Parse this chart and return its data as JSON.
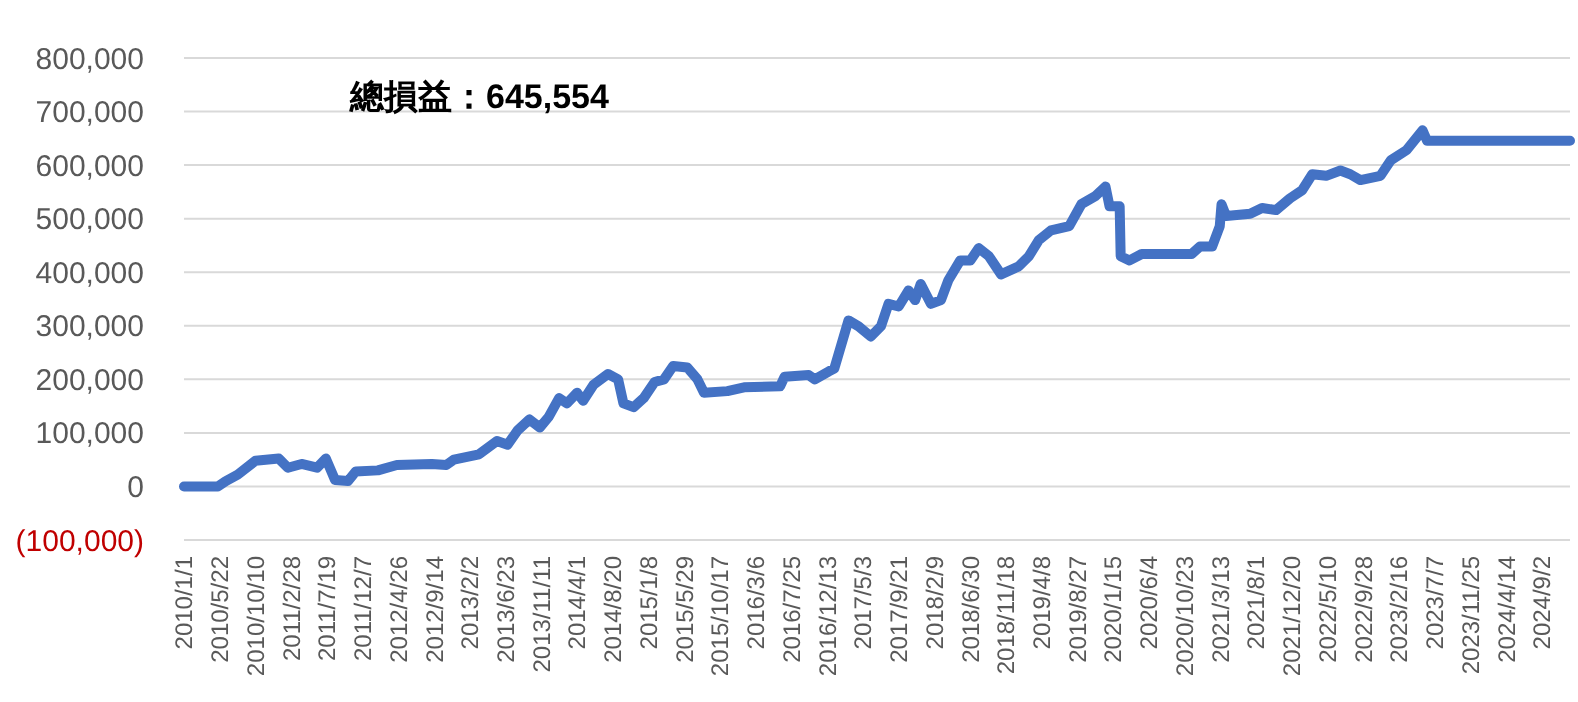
{
  "chart_data": {
    "type": "line",
    "title": "總損益：645,554",
    "x": [
      "2010-01-01",
      "2010-05-15",
      "2010-06-15",
      "2010-08-01",
      "2010-10-10",
      "2011-01-10",
      "2011-02-15",
      "2011-04-10",
      "2011-06-10",
      "2011-07-15",
      "2011-08-20",
      "2011-10-10",
      "2011-11-10",
      "2012-02-05",
      "2012-04-20",
      "2012-09-05",
      "2012-11-01",
      "2012-12-01",
      "2013-03-10",
      "2013-05-20",
      "2013-07-01",
      "2013-08-10",
      "2013-09-25",
      "2013-11-05",
      "2013-12-10",
      "2014-01-20",
      "2014-02-20",
      "2014-04-01",
      "2014-04-25",
      "2014-06-05",
      "2014-08-01",
      "2014-09-10",
      "2014-10-01",
      "2014-11-10",
      "2014-12-20",
      "2015-02-01",
      "2015-03-10",
      "2015-04-15",
      "2015-06-10",
      "2015-07-20",
      "2015-08-15",
      "2015-11-15",
      "2016-01-20",
      "2016-06-10",
      "2016-06-28",
      "2016-10-01",
      "2016-10-25",
      "2016-12-20",
      "2017-01-10",
      "2017-03-07",
      "2017-04-16",
      "2017-06-03",
      "2017-07-13",
      "2017-08-12",
      "2017-09-21",
      "2017-10-30",
      "2017-11-25",
      "2017-12-17",
      "2018-01-26",
      "2018-03-07",
      "2018-04-05",
      "2018-05-22",
      "2018-07-01",
      "2018-08-03",
      "2018-09-12",
      "2018-10-30",
      "2019-01-08",
      "2019-02-17",
      "2019-03-28",
      "2019-05-15",
      "2019-07-26",
      "2019-09-12",
      "2019-11-06",
      "2019-12-16",
      "2020-01-01",
      "2020-02-10",
      "2020-02-14",
      "2020-03-20",
      "2020-05-07",
      "2020-11-20",
      "2020-12-23",
      "2021-02-09",
      "2021-03-11",
      "2021-03-18",
      "2021-04-05",
      "2021-07-09",
      "2021-08-25",
      "2021-10-19",
      "2021-12-13",
      "2022-01-30",
      "2022-03-11",
      "2022-05-05",
      "2022-06-30",
      "2022-08-08",
      "2022-09-17",
      "2022-12-05",
      "2023-01-15",
      "2023-03-18",
      "2023-05-20",
      "2023-06-07",
      "2024-12-22"
    ],
    "series": [
      {
        "color": "#4472c4",
        "values": [
          0,
          0,
          10000,
          22000,
          48000,
          52000,
          35000,
          42000,
          35000,
          52000,
          12000,
          10000,
          28000,
          30000,
          40000,
          42000,
          40000,
          50000,
          60000,
          85000,
          78000,
          105000,
          125000,
          110000,
          130000,
          165000,
          155000,
          175000,
          160000,
          190000,
          210000,
          200000,
          155000,
          148000,
          165000,
          195000,
          200000,
          225000,
          222000,
          200000,
          175000,
          178000,
          185000,
          187000,
          205000,
          208000,
          200000,
          215000,
          220000,
          310000,
          299000,
          280000,
          299000,
          341000,
          336000,
          366000,
          348000,
          378000,
          341000,
          348000,
          385000,
          422000,
          422000,
          445000,
          430000,
          396000,
          411000,
          430000,
          460000,
          478000,
          486000,
          527000,
          542000,
          560000,
          523000,
          523000,
          430000,
          422000,
          434000,
          434000,
          448000,
          448000,
          486000,
          527000,
          505000,
          509000,
          520000,
          516000,
          538000,
          553000,
          583000,
          580000,
          590000,
          583000,
          572000,
          580000,
          609000,
          628000,
          665000,
          645554,
          645554
        ]
      }
    ],
    "xlim": [
      "2010-01-01",
      "2024-12-22"
    ],
    "xticks": [
      {
        "value": "2010-01-01",
        "label": "2010/1/1"
      },
      {
        "value": "2010-05-22",
        "label": "2010/5/22"
      },
      {
        "value": "2010-10-10",
        "label": "2010/10/10"
      },
      {
        "value": "2011-02-28",
        "label": "2011/2/28"
      },
      {
        "value": "2011-07-19",
        "label": "2011/7/19"
      },
      {
        "value": "2011-12-07",
        "label": "2011/12/7"
      },
      {
        "value": "2012-04-26",
        "label": "2012/4/26"
      },
      {
        "value": "2012-09-14",
        "label": "2012/9/14"
      },
      {
        "value": "2013-02-02",
        "label": "2013/2/2"
      },
      {
        "value": "2013-06-23",
        "label": "2013/6/23"
      },
      {
        "value": "2013-11-11",
        "label": "2013/11/11"
      },
      {
        "value": "2014-04-01",
        "label": "2014/4/1"
      },
      {
        "value": "2014-08-20",
        "label": "2014/8/20"
      },
      {
        "value": "2015-01-08",
        "label": "2015/1/8"
      },
      {
        "value": "2015-05-29",
        "label": "2015/5/29"
      },
      {
        "value": "2015-10-17",
        "label": "2015/10/17"
      },
      {
        "value": "2016-03-06",
        "label": "2016/3/6"
      },
      {
        "value": "2016-07-25",
        "label": "2016/7/25"
      },
      {
        "value": "2016-12-13",
        "label": "2016/12/13"
      },
      {
        "value": "2017-05-03",
        "label": "2017/5/3"
      },
      {
        "value": "2017-09-21",
        "label": "2017/9/21"
      },
      {
        "value": "2018-02-09",
        "label": "2018/2/9"
      },
      {
        "value": "2018-06-30",
        "label": "2018/6/30"
      },
      {
        "value": "2018-11-18",
        "label": "2018/11/18"
      },
      {
        "value": "2019-04-08",
        "label": "2019/4/8"
      },
      {
        "value": "2019-08-27",
        "label": "2019/8/27"
      },
      {
        "value": "2020-01-15",
        "label": "2020/1/15"
      },
      {
        "value": "2020-06-04",
        "label": "2020/6/4"
      },
      {
        "value": "2020-10-23",
        "label": "2020/10/23"
      },
      {
        "value": "2021-03-13",
        "label": "2021/3/13"
      },
      {
        "value": "2021-08-01",
        "label": "2021/8/1"
      },
      {
        "value": "2021-12-20",
        "label": "2021/12/20"
      },
      {
        "value": "2022-05-10",
        "label": "2022/5/10"
      },
      {
        "value": "2022-09-28",
        "label": "2022/9/28"
      },
      {
        "value": "2023-02-16",
        "label": "2023/2/16"
      },
      {
        "value": "2023-07-07",
        "label": "2023/7/7"
      },
      {
        "value": "2023-11-25",
        "label": "2023/11/25"
      },
      {
        "value": "2024-04-14",
        "label": "2024/4/14"
      },
      {
        "value": "2024-09-02",
        "label": "2024/9/2"
      }
    ],
    "ylim": [
      -100000,
      800000
    ],
    "yticks": [
      {
        "value": -100000,
        "label": "(100,000)"
      },
      {
        "value": 0,
        "label": "0"
      },
      {
        "value": 100000,
        "label": "100,000"
      },
      {
        "value": 200000,
        "label": "200,000"
      },
      {
        "value": 300000,
        "label": "300,000"
      },
      {
        "value": 400000,
        "label": "400,000"
      },
      {
        "value": 500000,
        "label": "500,000"
      },
      {
        "value": 600000,
        "label": "600,000"
      },
      {
        "value": 700000,
        "label": "700,000"
      },
      {
        "value": 800000,
        "label": "800,000"
      }
    ],
    "grid": "y",
    "line_style": "solid",
    "marker": "none"
  }
}
